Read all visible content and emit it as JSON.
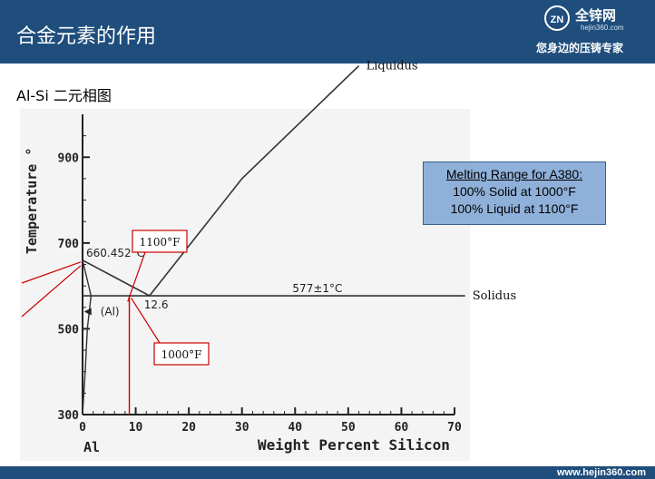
{
  "header": {
    "title": "合金元素的作用",
    "logo_mark": "ZN",
    "logo_name": "全锌网",
    "logo_domain": "hejin360.com",
    "tagline": "您身边的压铸专家"
  },
  "slide": {
    "subtitle": "Al-Si 二元相图"
  },
  "note": {
    "line1": "Melting Range for A380:",
    "line2": "100% Solid at 1000°F",
    "line3": "100% Liquid at 1100°F"
  },
  "footer": {
    "url": "www.hejin360.com"
  },
  "colors": {
    "header_bg": "#1f4e7d",
    "note_bg": "#8fb0d9",
    "annotation_red": "#cc0000"
  },
  "chart_data": {
    "type": "line",
    "ylabel": "Temperature °",
    "xlabel": "Weight Percent Silicon",
    "x_origin_label": "Al",
    "xlim": [
      0,
      70
    ],
    "ylim": [
      300,
      1000
    ],
    "x_ticks": [
      0,
      10,
      20,
      30,
      40,
      50,
      60,
      70
    ],
    "y_ticks": [
      300,
      500,
      700,
      900
    ],
    "series": [
      {
        "name": "Liquidus",
        "x": [
          0,
          12.6,
          30,
          52
        ],
        "y": [
          660,
          577,
          850,
          1113
        ]
      },
      {
        "name": "Solidus",
        "x": [
          0,
          72
        ],
        "y": [
          577,
          577
        ]
      }
    ],
    "boundaries": [
      {
        "x": [
          0,
          1.6,
          0.9,
          0.5,
          0
        ],
        "y": [
          660,
          577,
          500,
          400,
          300
        ]
      }
    ],
    "point_labels": [
      {
        "text": "660.452°C",
        "x": 0,
        "y": 660
      },
      {
        "text": "12.6",
        "x": 12.6,
        "y": 577
      },
      {
        "text": "577±1°C",
        "x": 60,
        "y": 577
      },
      {
        "text": "(Al)",
        "x": 2,
        "y": 540
      }
    ],
    "callouts": [
      {
        "label": "1100°F",
        "x": 8.5,
        "y": 593
      },
      {
        "label": "1000°F",
        "x": 8.8,
        "y": 538
      }
    ]
  }
}
